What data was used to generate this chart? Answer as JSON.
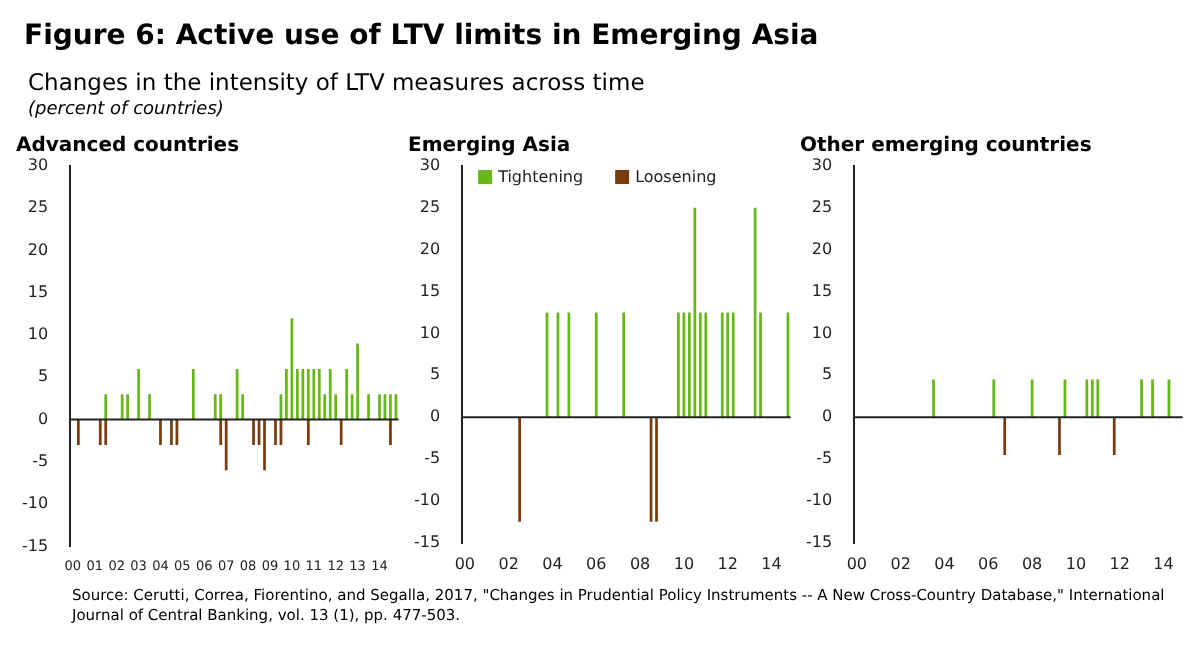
{
  "chart_data": [
    {
      "type": "other",
      "title": "Figure 6: Active use of LTV limits in Emerging Asia",
      "subtitle": "Changes in the intensity of LTV measures across time",
      "annotations": [
        "(percent of countries)",
        "Source: Cerutti, Correa, Fiorentino, and Segalla, 2017, \"Changes in Prudential Policy Instruments -- A New Cross-Country Database,\" International Journal of Central Banking, vol. 13 (1), pp. 477-503."
      ]
    },
    {
      "type": "bar",
      "title": "Advanced countries",
      "stacked": true,
      "legend": false,
      "grid": false,
      "ref_lines": [
        {
          "axis": "y",
          "value": 0,
          "color": "#222222"
        }
      ],
      "categories": [
        "00",
        null,
        null,
        null,
        "01",
        null,
        null,
        null,
        "02",
        null,
        null,
        null,
        "03",
        null,
        null,
        null,
        "04",
        null,
        null,
        null,
        "05",
        null,
        null,
        null,
        "06",
        null,
        null,
        null,
        "07",
        null,
        null,
        null,
        "08",
        null,
        null,
        null,
        "09",
        null,
        null,
        null,
        "10",
        null,
        null,
        null,
        "11",
        null,
        null,
        null,
        "12",
        null,
        null,
        null,
        "13",
        null,
        null,
        null,
        "14",
        null,
        null,
        null
      ],
      "ylim": [
        -15,
        30
      ],
      "yticks": [
        -15,
        -10,
        -5,
        0,
        5,
        10,
        15,
        20,
        25,
        30
      ],
      "series": [
        {
          "color": "#66b814",
          "values": [
            null,
            null,
            null,
            null,
            null,
            null,
            3,
            null,
            null,
            3,
            3,
            null,
            6,
            null,
            3,
            null,
            null,
            null,
            null,
            null,
            null,
            null,
            6,
            null,
            null,
            null,
            3,
            3,
            null,
            null,
            6,
            3,
            null,
            null,
            null,
            null,
            null,
            null,
            3,
            6,
            12,
            6,
            6,
            6,
            6,
            6,
            3,
            6,
            3,
            null,
            6,
            3,
            9,
            null,
            3,
            null,
            3,
            3,
            3,
            3
          ]
        },
        {
          "color": "#7a3c0c",
          "values": [
            null,
            -3,
            null,
            null,
            null,
            -3,
            -3,
            null,
            null,
            null,
            null,
            null,
            null,
            null,
            null,
            null,
            -3,
            null,
            -3,
            -3,
            null,
            null,
            null,
            null,
            null,
            null,
            null,
            -3,
            -6,
            null,
            null,
            null,
            null,
            -3,
            -3,
            -6,
            null,
            -3,
            -3,
            null,
            null,
            null,
            null,
            -3,
            null,
            null,
            null,
            null,
            null,
            -3,
            null,
            null,
            null,
            null,
            null,
            null,
            null,
            null,
            -3,
            null
          ]
        }
      ]
    },
    {
      "type": "bar",
      "title": "Emerging Asia",
      "stacked": true,
      "legend": "top left",
      "grid": false,
      "ref_lines": [
        {
          "axis": "y",
          "value": 0,
          "color": "#222222"
        }
      ],
      "categories": [
        "00",
        null,
        null,
        null,
        null,
        null,
        null,
        null,
        "02",
        null,
        null,
        null,
        null,
        null,
        null,
        null,
        "04",
        null,
        null,
        null,
        null,
        null,
        null,
        null,
        "06",
        null,
        null,
        null,
        null,
        null,
        null,
        null,
        "08",
        null,
        null,
        null,
        null,
        null,
        null,
        null,
        "10",
        null,
        null,
        null,
        null,
        null,
        null,
        null,
        "12",
        null,
        null,
        null,
        null,
        null,
        null,
        null,
        "14",
        null,
        null,
        null
      ],
      "ylim": [
        -15,
        30
      ],
      "yticks": [
        -15,
        -10,
        -5,
        0,
        5,
        10,
        15,
        20,
        25,
        30
      ],
      "series": [
        {
          "name": "Tightening",
          "color": "#66b814",
          "values": [
            null,
            null,
            null,
            null,
            null,
            null,
            null,
            null,
            null,
            null,
            null,
            null,
            null,
            null,
            null,
            12.5,
            null,
            12.5,
            null,
            12.5,
            null,
            null,
            null,
            null,
            12.5,
            null,
            null,
            null,
            null,
            12.5,
            null,
            null,
            null,
            null,
            null,
            null,
            null,
            null,
            null,
            12.5,
            12.5,
            12.5,
            25,
            12.5,
            12.5,
            null,
            null,
            12.5,
            12.5,
            12.5,
            null,
            null,
            null,
            25,
            12.5,
            null,
            null,
            null,
            null,
            12.5
          ]
        },
        {
          "name": "Loosening",
          "color": "#7a3c0c",
          "values": [
            null,
            null,
            null,
            null,
            null,
            null,
            null,
            null,
            null,
            null,
            -12.5,
            null,
            null,
            null,
            null,
            null,
            null,
            null,
            null,
            null,
            null,
            null,
            null,
            null,
            null,
            null,
            null,
            null,
            null,
            null,
            null,
            null,
            null,
            null,
            -12.5,
            -12.5,
            null,
            null,
            null,
            null,
            null,
            null,
            null,
            null,
            null,
            null,
            null,
            null,
            null,
            null,
            null,
            null,
            null,
            null,
            null,
            null,
            null,
            null,
            null,
            null
          ]
        }
      ]
    },
    {
      "type": "bar",
      "title": "Other emerging countries",
      "stacked": true,
      "legend": false,
      "grid": false,
      "ref_lines": [
        {
          "axis": "y",
          "value": 0,
          "color": "#222222"
        }
      ],
      "categories": [
        "00",
        null,
        null,
        null,
        null,
        null,
        null,
        null,
        "02",
        null,
        null,
        null,
        null,
        null,
        null,
        null,
        "04",
        null,
        null,
        null,
        null,
        null,
        null,
        null,
        "06",
        null,
        null,
        null,
        null,
        null,
        null,
        null,
        "08",
        null,
        null,
        null,
        null,
        null,
        null,
        null,
        "10",
        null,
        null,
        null,
        null,
        null,
        null,
        null,
        "12",
        null,
        null,
        null,
        null,
        null,
        null,
        null,
        "14",
        null,
        null,
        null
      ],
      "ylim": [
        -15,
        30
      ],
      "yticks": [
        -15,
        -10,
        -5,
        0,
        5,
        10,
        15,
        20,
        25,
        30
      ],
      "series": [
        {
          "color": "#66b814",
          "values": [
            null,
            null,
            null,
            null,
            null,
            null,
            null,
            null,
            null,
            null,
            null,
            null,
            null,
            null,
            4.5,
            null,
            null,
            null,
            null,
            null,
            null,
            null,
            null,
            null,
            null,
            4.5,
            null,
            null,
            null,
            null,
            null,
            null,
            4.5,
            null,
            null,
            null,
            null,
            null,
            4.5,
            null,
            null,
            null,
            4.5,
            4.5,
            4.5,
            null,
            null,
            null,
            null,
            null,
            null,
            null,
            4.5,
            null,
            4.5,
            null,
            null,
            4.5,
            null,
            null
          ]
        },
        {
          "color": "#7a3c0c",
          "values": [
            null,
            null,
            null,
            null,
            null,
            null,
            null,
            null,
            null,
            null,
            null,
            null,
            null,
            null,
            null,
            null,
            null,
            null,
            null,
            null,
            null,
            null,
            null,
            null,
            null,
            null,
            null,
            -4.5,
            null,
            null,
            null,
            null,
            null,
            null,
            null,
            null,
            null,
            -4.5,
            null,
            null,
            null,
            null,
            null,
            null,
            null,
            null,
            null,
            -4.5,
            null,
            null,
            null,
            null,
            null,
            null,
            null,
            null,
            null,
            null,
            null,
            null
          ]
        }
      ]
    }
  ]
}
